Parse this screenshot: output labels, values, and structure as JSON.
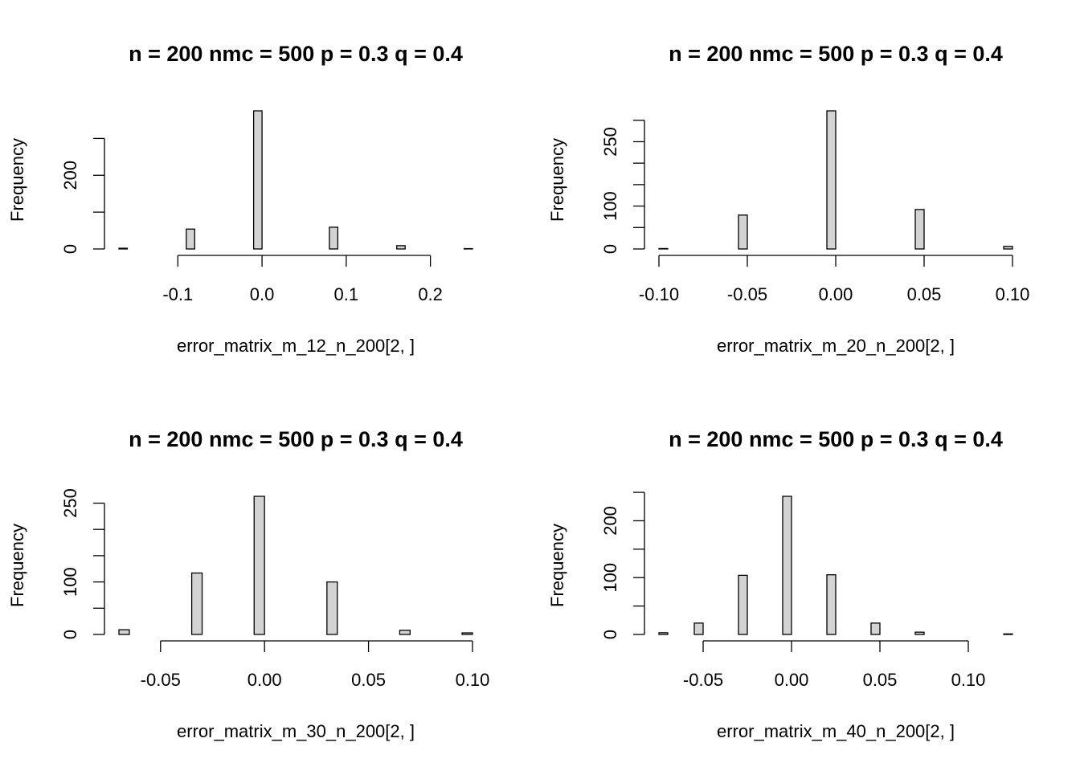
{
  "chart_data": [
    {
      "type": "histogram",
      "title": "n = 200 nmc = 500 p = 0.3 q = 0.4",
      "xlabel": "error_matrix_m_12_n_200[2, ]",
      "ylabel": "Frequency",
      "color": "#d3d3d3",
      "bins": [
        -0.17,
        -0.16,
        -0.15,
        -0.14,
        -0.13,
        -0.12,
        -0.11,
        -0.1,
        -0.09,
        -0.08,
        -0.07,
        -0.06,
        -0.05,
        -0.04,
        -0.03,
        -0.02,
        -0.01,
        0,
        0.01,
        0.02,
        0.03,
        0.04,
        0.05,
        0.06,
        0.07,
        0.08,
        0.09,
        0.1,
        0.11,
        0.12,
        0.13,
        0.14,
        0.15,
        0.16,
        0.17,
        0.18,
        0.19,
        0.2,
        0.21,
        0.22,
        0.23,
        0.24,
        0.25
      ],
      "values": [
        2,
        0,
        0,
        0,
        0,
        0,
        0,
        0,
        54,
        0,
        0,
        0,
        0,
        0,
        0,
        0,
        375,
        0,
        0,
        0,
        0,
        0,
        0,
        0,
        0,
        59,
        0,
        0,
        0,
        0,
        0,
        0,
        0,
        9,
        0,
        0,
        0,
        0,
        0,
        0,
        0,
        1
      ],
      "xlim": [
        -0.17,
        0.25
      ],
      "xticks": [
        -0.1,
        {
          "value": 0,
          "label": "0.0"
        },
        0.1,
        0.2
      ],
      "ylim": [
        0,
        375
      ],
      "yticks": [
        0,
        {
          "value": 100,
          "label": null
        },
        200,
        {
          "value": 300,
          "label": null
        }
      ]
    },
    {
      "type": "histogram",
      "title": "n = 200 nmc = 500 p = 0.3 q = 0.4",
      "xlabel": "error_matrix_m_20_n_200[2, ]",
      "ylabel": "Frequency",
      "color": "#d3d3d3",
      "bins": [
        -0.1,
        -0.095,
        -0.09,
        -0.085,
        -0.08,
        -0.075,
        -0.07,
        -0.065,
        -0.06,
        -0.055,
        -0.05,
        -0.045,
        -0.04,
        -0.035,
        -0.03,
        -0.025,
        -0.02,
        -0.015,
        -0.01,
        -0.005,
        0,
        0.005,
        0.01,
        0.015,
        0.02,
        0.025,
        0.03,
        0.035,
        0.04,
        0.045,
        0.05,
        0.055,
        0.06,
        0.065,
        0.07,
        0.075,
        0.08,
        0.085,
        0.09,
        0.095,
        0.1
      ],
      "values": [
        1,
        0,
        0,
        0,
        0,
        0,
        0,
        0,
        0,
        79,
        0,
        0,
        0,
        0,
        0,
        0,
        0,
        0,
        0,
        322,
        0,
        0,
        0,
        0,
        0,
        0,
        0,
        0,
        0,
        92,
        0,
        0,
        0,
        0,
        0,
        0,
        0,
        0,
        0,
        6
      ],
      "xlim": [
        -0.1,
        0.1
      ],
      "xticks": [
        {
          "value": -0.1,
          "label": "-0.10"
        },
        -0.05,
        {
          "value": 0,
          "label": "0.00"
        },
        0.05,
        {
          "value": 0.1,
          "label": "0.10"
        }
      ],
      "ylim": [
        0,
        322
      ],
      "yticks": [
        0,
        {
          "value": 50,
          "label": null
        },
        100,
        {
          "value": 150,
          "label": null
        },
        {
          "value": 200,
          "label": null
        },
        250,
        {
          "value": 300,
          "label": null
        }
      ]
    },
    {
      "type": "histogram",
      "title": "n = 200 nmc = 500 p = 0.3 q = 0.4",
      "xlabel": "error_matrix_m_30_n_200[2, ]",
      "ylabel": "Frequency",
      "color": "#d3d3d3",
      "bins": [
        -0.07,
        -0.065,
        -0.06,
        -0.055,
        -0.05,
        -0.045,
        -0.04,
        -0.035,
        -0.03,
        -0.025,
        -0.02,
        -0.015,
        -0.01,
        -0.005,
        0,
        0.005,
        0.01,
        0.015,
        0.02,
        0.025,
        0.03,
        0.035,
        0.04,
        0.045,
        0.05,
        0.055,
        0.06,
        0.065,
        0.07,
        0.075,
        0.08,
        0.085,
        0.09,
        0.095,
        0.1
      ],
      "values": [
        9,
        0,
        0,
        0,
        0,
        0,
        0,
        117,
        0,
        0,
        0,
        0,
        0,
        263,
        0,
        0,
        0,
        0,
        0,
        0,
        100,
        0,
        0,
        0,
        0,
        0,
        0,
        8,
        0,
        0,
        0,
        0,
        0,
        3
      ],
      "xlim": [
        -0.07,
        0.1
      ],
      "xticks": [
        -0.05,
        {
          "value": 0,
          "label": "0.00"
        },
        0.05,
        {
          "value": 0.1,
          "label": "0.10"
        }
      ],
      "ylim": [
        0,
        263
      ],
      "yticks": [
        0,
        {
          "value": 50,
          "label": null
        },
        100,
        {
          "value": 150,
          "label": null
        },
        {
          "value": 200,
          "label": null
        },
        250
      ]
    },
    {
      "type": "histogram",
      "title": "n = 200 nmc = 500 p = 0.3 q = 0.4",
      "xlabel": "error_matrix_m_40_n_200[2, ]",
      "ylabel": "Frequency",
      "color": "#d3d3d3",
      "bins": [
        -0.075,
        -0.07,
        -0.065,
        -0.06,
        -0.055,
        -0.05,
        -0.045,
        -0.04,
        -0.035,
        -0.03,
        -0.025,
        -0.02,
        -0.015,
        -0.01,
        -0.005,
        0,
        0.005,
        0.01,
        0.015,
        0.02,
        0.025,
        0.03,
        0.035,
        0.04,
        0.045,
        0.05,
        0.055,
        0.06,
        0.065,
        0.07,
        0.075,
        0.08,
        0.085,
        0.09,
        0.095,
        0.1,
        0.105,
        0.11,
        0.115,
        0.12,
        0.125
      ],
      "values": [
        3,
        0,
        0,
        0,
        20,
        0,
        0,
        0,
        0,
        104,
        0,
        0,
        0,
        0,
        243,
        0,
        0,
        0,
        0,
        105,
        0,
        0,
        0,
        0,
        20,
        0,
        0,
        0,
        0,
        4,
        0,
        0,
        0,
        0,
        0,
        0,
        0,
        0,
        0,
        1
      ],
      "xlim": [
        -0.075,
        0.125
      ],
      "xticks": [
        -0.05,
        {
          "value": 0,
          "label": "0.00"
        },
        0.05,
        {
          "value": 0.1,
          "label": "0.10"
        }
      ],
      "ylim": [
        0,
        243
      ],
      "yticks": [
        0,
        {
          "value": 50,
          "label": null
        },
        100,
        {
          "value": 150,
          "label": null
        },
        200,
        {
          "value": 250,
          "label": null
        }
      ]
    }
  ]
}
